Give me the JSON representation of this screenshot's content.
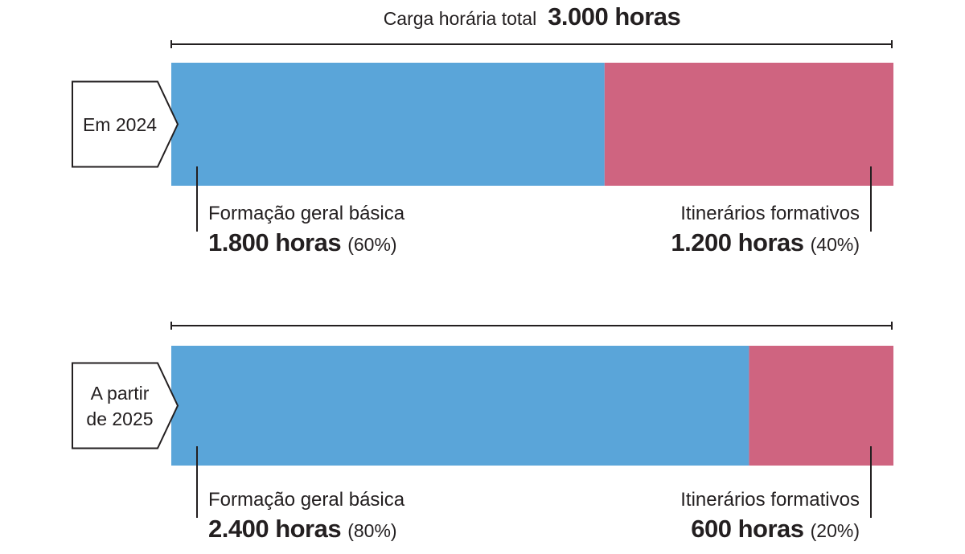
{
  "chart_data": {
    "type": "bar",
    "orientation": "horizontal",
    "stacked": true,
    "normalized": true,
    "total_label": "Carga horária total",
    "total_value": "3.000 horas",
    "total": 3000,
    "colors": {
      "formacao": "#5aa5d9",
      "itinerarios": "#cf6480"
    },
    "rows": [
      {
        "label_lines": [
          "Em 2024"
        ],
        "segments": [
          {
            "name": "Formação geral básica",
            "value": 1800,
            "value_label": "1.800 horas",
            "pct_label": "(60%)",
            "color_key": "formacao"
          },
          {
            "name": "Itinerários formativos",
            "value": 1200,
            "value_label": "1.200 horas",
            "pct_label": "(40%)",
            "color_key": "itinerarios"
          }
        ]
      },
      {
        "label_lines": [
          "A partir",
          "de 2025"
        ],
        "segments": [
          {
            "name": "Formação geral básica",
            "value": 2400,
            "value_label": "2.400 horas",
            "pct_label": "(80%)",
            "color_key": "formacao"
          },
          {
            "name": "Itinerários formativos",
            "value": 600,
            "value_label": "600 horas",
            "pct_label": "(20%)",
            "color_key": "itinerarios"
          }
        ]
      }
    ]
  }
}
